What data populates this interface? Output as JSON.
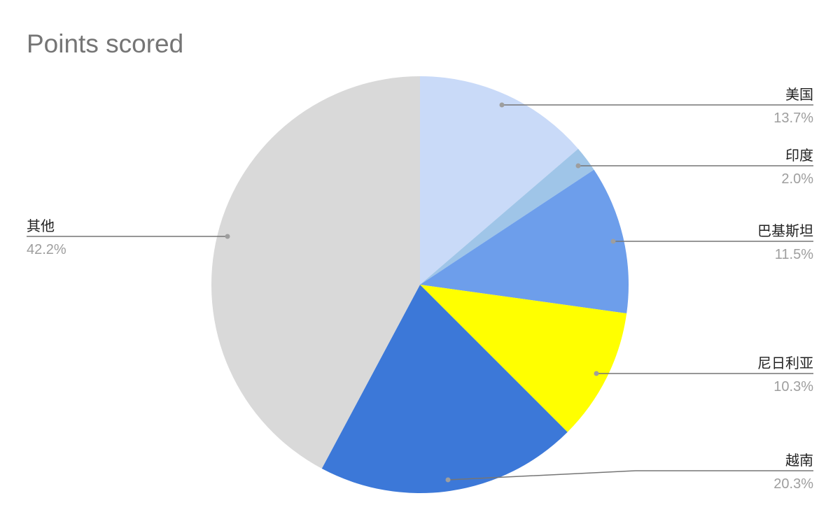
{
  "chart_data": {
    "type": "pie",
    "title": "Points scored",
    "start": "top",
    "direction": "clockwise",
    "slices": [
      {
        "label": "美国",
        "value": 13.7,
        "display": "13.7%",
        "color": "#c9daf8"
      },
      {
        "label": "印度",
        "value": 2.0,
        "display": "2.0%",
        "color": "#9fc5e8"
      },
      {
        "label": "巴基斯坦",
        "value": 11.5,
        "display": "11.5%",
        "color": "#6d9eeb"
      },
      {
        "label": "尼日利亚",
        "value": 10.3,
        "display": "10.3%",
        "color": "#ffff00"
      },
      {
        "label": "越南",
        "value": 20.3,
        "display": "20.3%",
        "color": "#3c78d8"
      },
      {
        "label": "其他",
        "value": 42.2,
        "display": "42.2%",
        "color": "#d9d9d9"
      }
    ],
    "legend": "labels with leader lines"
  }
}
